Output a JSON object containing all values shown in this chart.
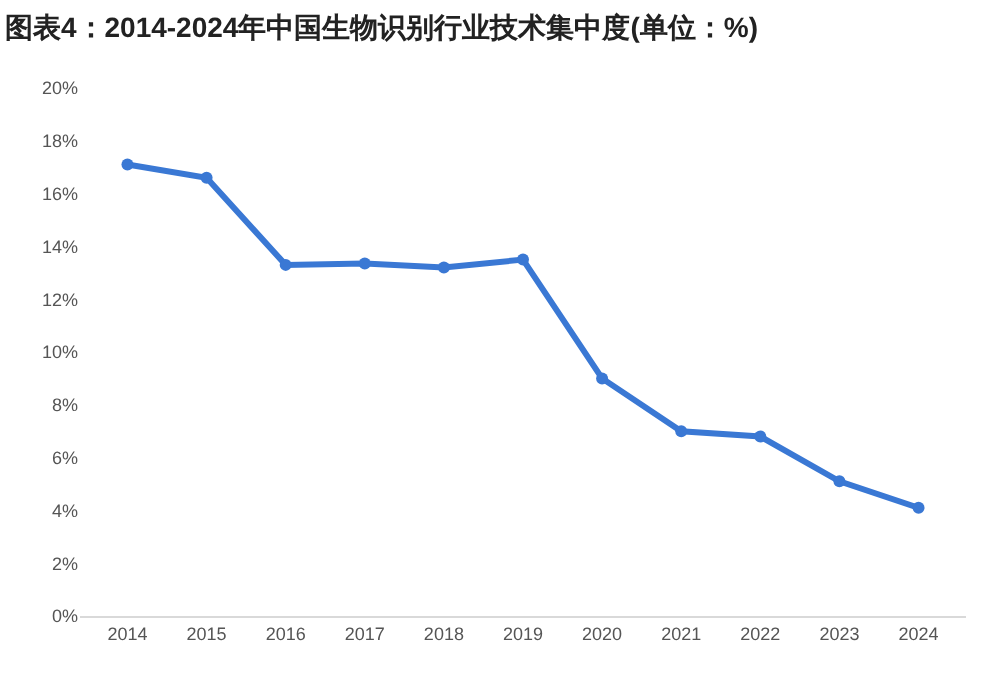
{
  "chart_data": {
    "type": "line",
    "title": "图表4：2014-2024年中国生物识别行业技术集中度(单位：%)",
    "categories": [
      "2014",
      "2015",
      "2016",
      "2017",
      "2018",
      "2019",
      "2020",
      "2021",
      "2022",
      "2023",
      "2024"
    ],
    "series": [
      {
        "color": "#3a78d4",
        "values": [
          17.1,
          16.6,
          13.3,
          13.35,
          13.2,
          13.5,
          9.0,
          7.0,
          6.8,
          5.1,
          4.1
        ]
      }
    ],
    "ylim": [
      0,
      20
    ],
    "yticks": [
      {
        "value": 0,
        "label": "0%"
      },
      {
        "value": 2,
        "label": "2%"
      },
      {
        "value": 4,
        "label": "4%"
      },
      {
        "value": 6,
        "label": "6%"
      },
      {
        "value": 8,
        "label": "8%"
      },
      {
        "value": 10,
        "label": "10%"
      },
      {
        "value": 12,
        "label": "12%"
      },
      {
        "value": 14,
        "label": "14%"
      },
      {
        "value": 16,
        "label": "16%"
      },
      {
        "value": 18,
        "label": "18%"
      },
      {
        "value": 20,
        "label": "20%"
      }
    ],
    "marker": "circle",
    "line_style": "solid"
  }
}
